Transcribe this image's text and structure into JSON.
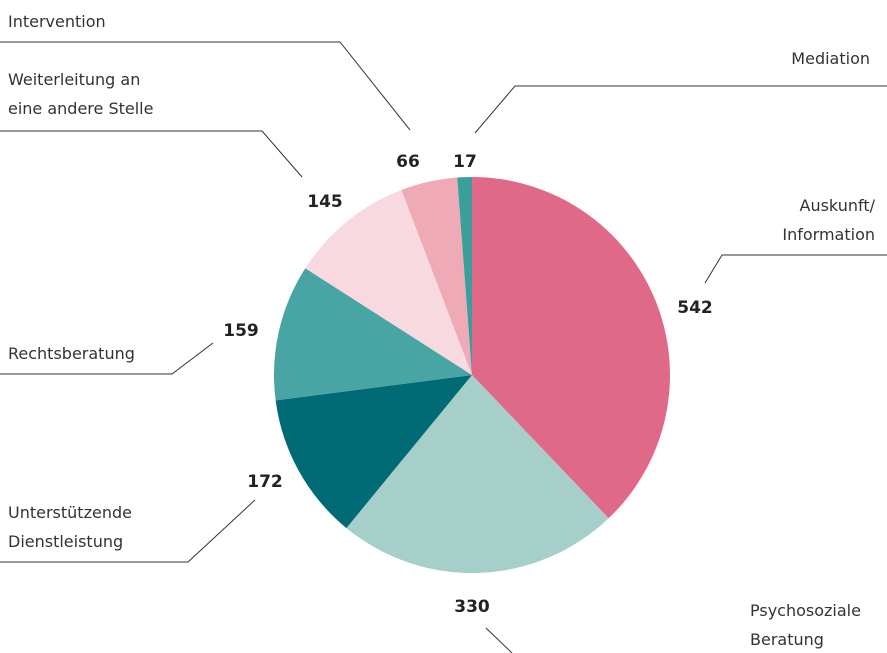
{
  "chart_data": {
    "type": "pie",
    "categories": [
      "Auskunft/\nInformation",
      "Psychosoziale\nBeratung",
      "Unterstützende\nDienstleistung",
      "Rechtsberatung",
      "Weiterleitung an\neine andere Stelle",
      "Intervention",
      "Mediation"
    ],
    "values": [
      542,
      330,
      172,
      159,
      145,
      66,
      17
    ],
    "colors": [
      "#e0698a",
      "#a5cfc8",
      "#006b75",
      "#48a5a3",
      "#f7d9df",
      "#eeaab6",
      "#3a9e9a"
    ]
  }
}
